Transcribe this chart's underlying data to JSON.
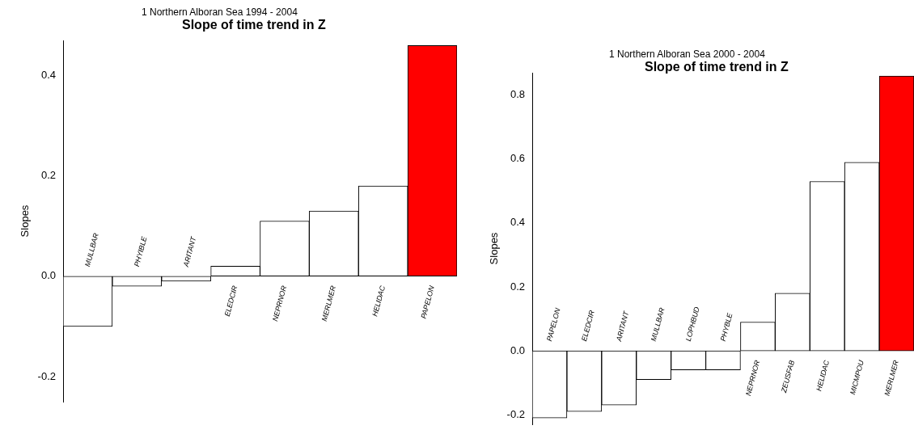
{
  "chart_data": [
    {
      "type": "bar",
      "subtitle": "1 Northern Alboran Sea 1994 - 2004",
      "title": "Slope of time trend in Z",
      "ylabel": "Slopes",
      "categories": [
        "MULLBAR",
        "PHYIBLE",
        "ARITANT",
        "ELEDCIR",
        "NEPRNOR",
        "MERLMER",
        "HELIDAC",
        "PAPELON"
      ],
      "values": [
        -0.1,
        -0.02,
        -0.01,
        0.02,
        0.11,
        0.13,
        0.18,
        0.46
      ],
      "colors": [
        "#ffffff",
        "#ffffff",
        "#ffffff",
        "#ffffff",
        "#ffffff",
        "#ffffff",
        "#ffffff",
        "#ff0000"
      ],
      "ylim": [
        -0.25,
        0.47
      ],
      "yticks": [
        -0.2,
        {
          "value": 0,
          "label": "0.0"
        },
        0.2,
        0.4
      ],
      "grid": false,
      "legend": false
    },
    {
      "type": "bar",
      "subtitle": "1 Northern Alboran Sea 2000 - 2004",
      "title": "Slope of time trend in Z",
      "ylabel": "Slopes",
      "categories": [
        "PAPELON",
        "ELEDCIR",
        "ARITANT",
        "MULLBAR",
        "LOPHBUD",
        "PHYBLE",
        "NEPRNOR",
        "ZEUSFAB",
        "HELIDAC",
        "MICMPOU",
        "MERLMER"
      ],
      "values": [
        -0.21,
        -0.19,
        -0.17,
        -0.09,
        -0.06,
        -0.06,
        0.09,
        0.18,
        0.53,
        0.59,
        0.86
      ],
      "colors": [
        "#ffffff",
        "#ffffff",
        "#ffffff",
        "#ffffff",
        "#ffffff",
        "#ffffff",
        "#ffffff",
        "#ffffff",
        "#ffffff",
        "#ffffff",
        "#ff0000"
      ],
      "ylim": [
        -0.23,
        0.87
      ],
      "yticks": [
        -0.2,
        {
          "value": 0,
          "label": "0.0"
        },
        0.2,
        0.4,
        0.6,
        0.8
      ],
      "grid": false,
      "legend": false
    }
  ]
}
